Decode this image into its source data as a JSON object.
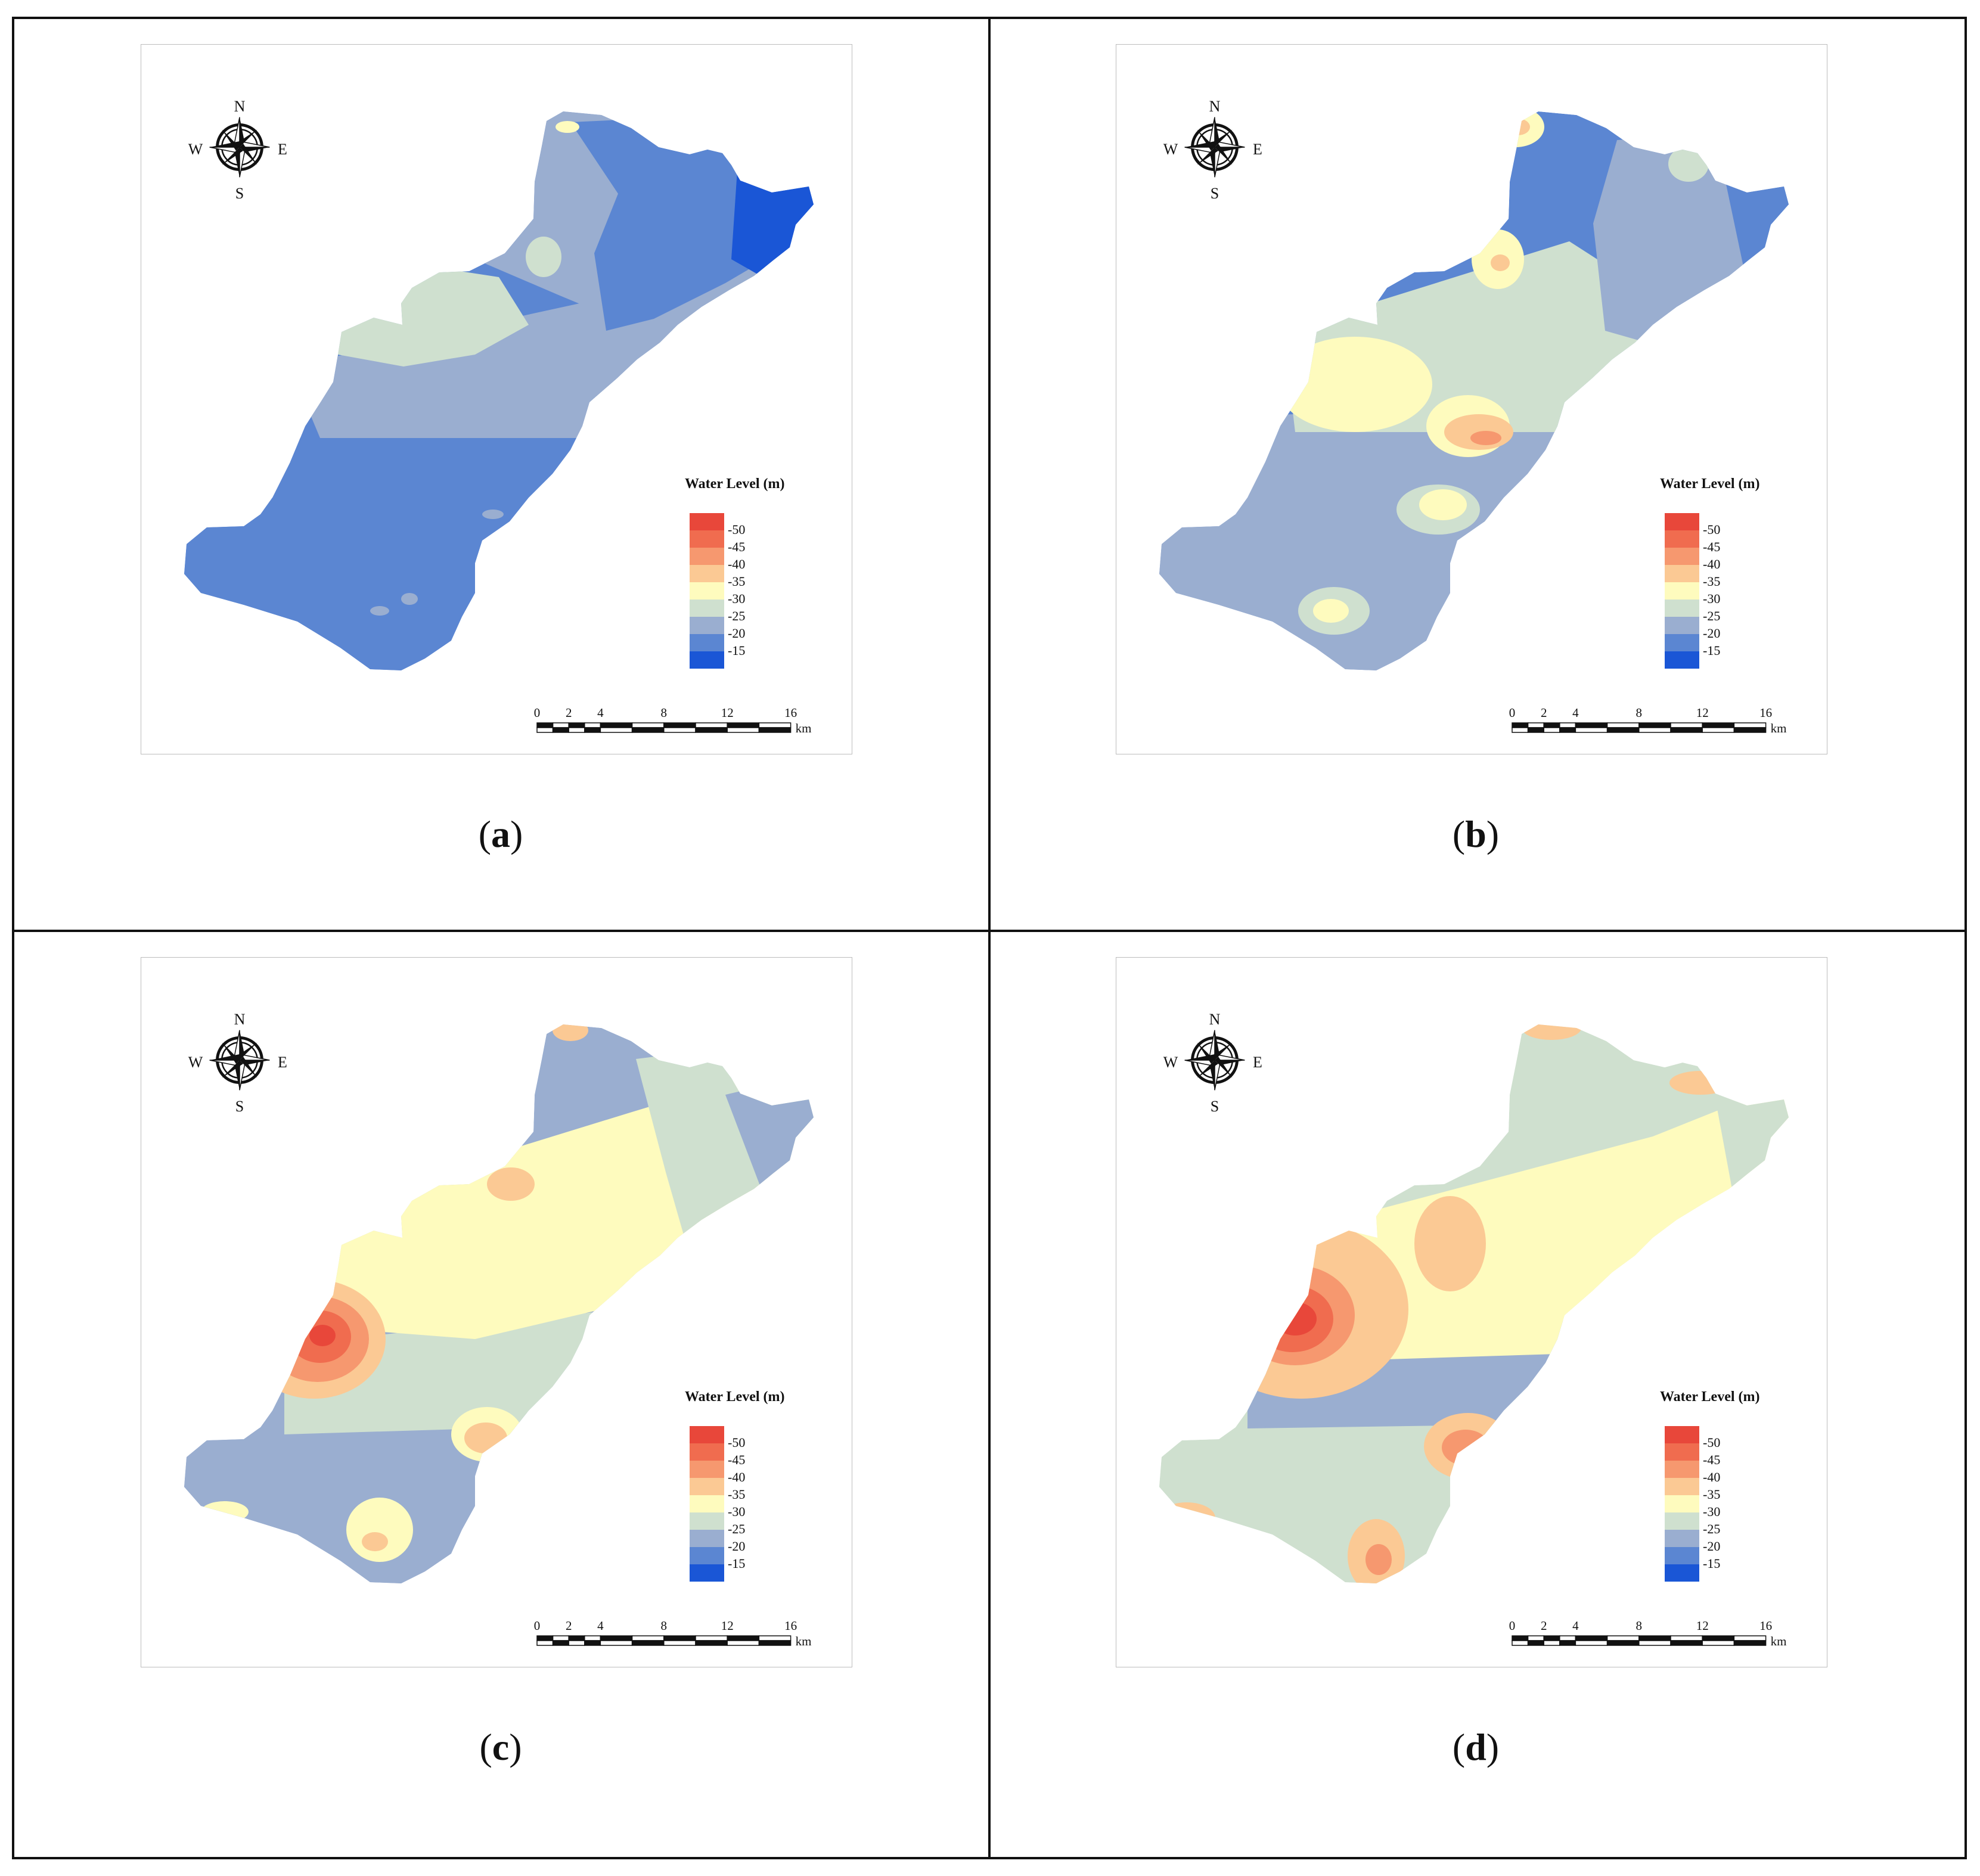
{
  "figure": {
    "panels": [
      {
        "id": "a",
        "caption": "a",
        "level": 0
      },
      {
        "id": "b",
        "caption": "b",
        "level": 1
      },
      {
        "id": "c",
        "caption": "c",
        "level": 2
      },
      {
        "id": "d",
        "caption": "d",
        "level": 3
      }
    ],
    "compass": {
      "north": "N",
      "south": "S",
      "east": "E",
      "west": "W"
    },
    "legend": {
      "title": "Water Level (m)",
      "classes": [
        {
          "label": "-50",
          "color": "#e8473a"
        },
        {
          "label": "-45",
          "color": "#f06c4f"
        },
        {
          "label": "-40",
          "color": "#f6986f"
        },
        {
          "label": "-35",
          "color": "#fbc994"
        },
        {
          "label": "-30",
          "color": "#fefbbe"
        },
        {
          "label": "-25",
          "color": "#cfe0cf"
        },
        {
          "label": "-20",
          "color": "#9aaed0"
        },
        {
          "label": "-15",
          "color": "#5b86d2"
        },
        {
          "label": "",
          "color": "#1a56d6"
        }
      ]
    },
    "scale_bar": {
      "ticks": [
        "0",
        "2",
        "4",
        "8",
        "12",
        "16"
      ],
      "unit": "km"
    }
  }
}
